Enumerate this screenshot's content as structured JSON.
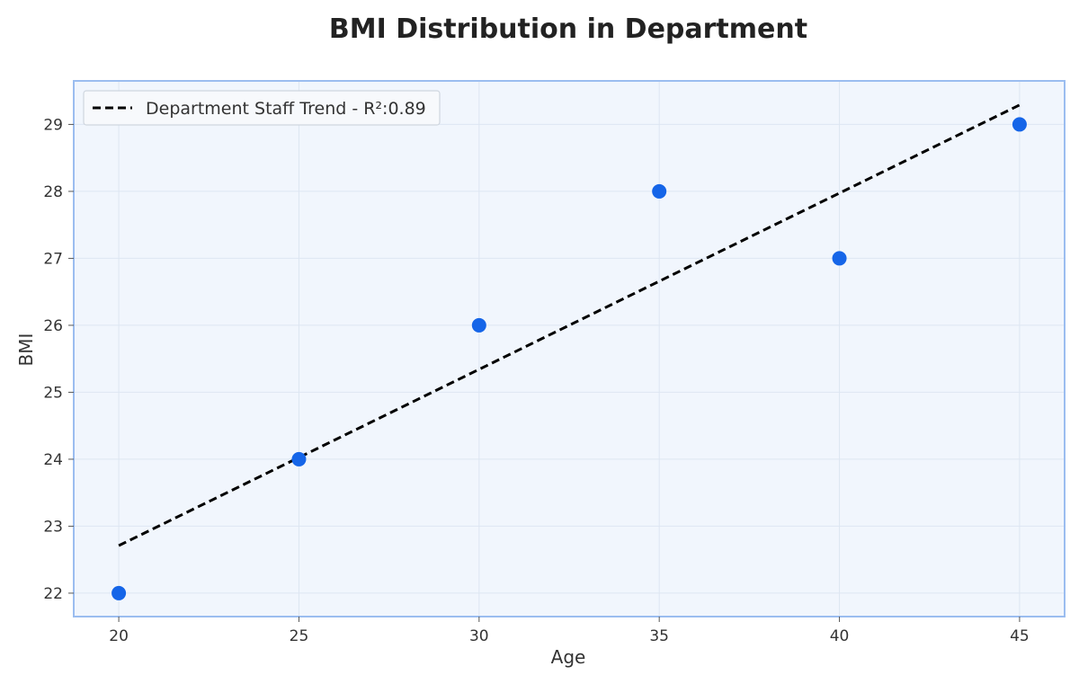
{
  "chart_data": {
    "type": "scatter",
    "title": "BMI Distribution in Department",
    "xlabel": "Age",
    "ylabel": "BMI",
    "xlim": [
      18.75,
      46.25
    ],
    "ylim": [
      21.65,
      29.65
    ],
    "xticks": [
      20,
      25,
      30,
      35,
      40,
      45
    ],
    "yticks": [
      22,
      23,
      24,
      25,
      26,
      27,
      28,
      29
    ],
    "grid": true,
    "legend_position": "top-left",
    "series": [
      {
        "kind": "scatter",
        "x": [
          20,
          25,
          30,
          35,
          40,
          45
        ],
        "y": [
          22,
          24,
          26,
          28,
          27,
          29
        ],
        "color": "#1565e8"
      },
      {
        "kind": "line",
        "name": "Department Staff Trend - R²:0.89",
        "style": "dashed",
        "x": [
          20,
          45
        ],
        "y": [
          22.71,
          29.29
        ],
        "color": "#000000"
      }
    ],
    "colors": {
      "plot_background": "#f1f6fd",
      "frame": "#9bbdf0",
      "grid": "#dde6f2",
      "points": "#1565e8",
      "trend": "#000000"
    }
  }
}
